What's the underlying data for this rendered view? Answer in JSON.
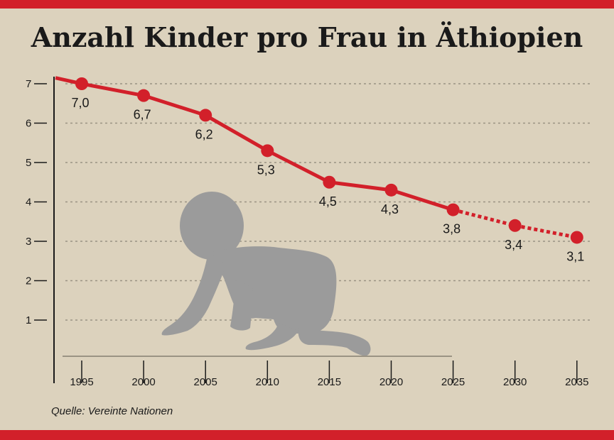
{
  "title": "Anzahl Kinder pro Frau in Äthiopien",
  "source": "Quelle: Vereinte Nationen",
  "colors": {
    "band": "#d2202a",
    "line": "#d2202a",
    "background": "#dcd2bd",
    "grid": "#9a9384",
    "silhouette": "#9b9b9b"
  },
  "icons": {
    "illustration": "crawling-baby-icon"
  },
  "chart_data": {
    "type": "line",
    "title": "Anzahl Kinder pro Frau in Äthiopien",
    "xlabel": "",
    "ylabel": "",
    "x": [
      1995,
      2000,
      2005,
      2010,
      2015,
      2020,
      2025,
      2030,
      2035
    ],
    "xticks": [
      "1995",
      "2000",
      "2005",
      "2010",
      "2015",
      "2020",
      "2025",
      "2030",
      "2035"
    ],
    "yticks": [
      "1",
      "2",
      "3",
      "4",
      "5",
      "6",
      "7"
    ],
    "ylim": [
      0,
      7.5
    ],
    "grid": true,
    "series": [
      {
        "values": [
          7.0,
          6.7,
          6.2,
          5.3,
          4.5,
          4.3,
          3.8,
          3.4,
          3.1
        ],
        "labels": [
          "7,0",
          "6,7",
          "6,2",
          "5,3",
          "4,5",
          "4,3",
          "3,8",
          "3,4",
          "3,1"
        ],
        "projection_from": 2025,
        "line_start_value": 7.15
      }
    ]
  }
}
